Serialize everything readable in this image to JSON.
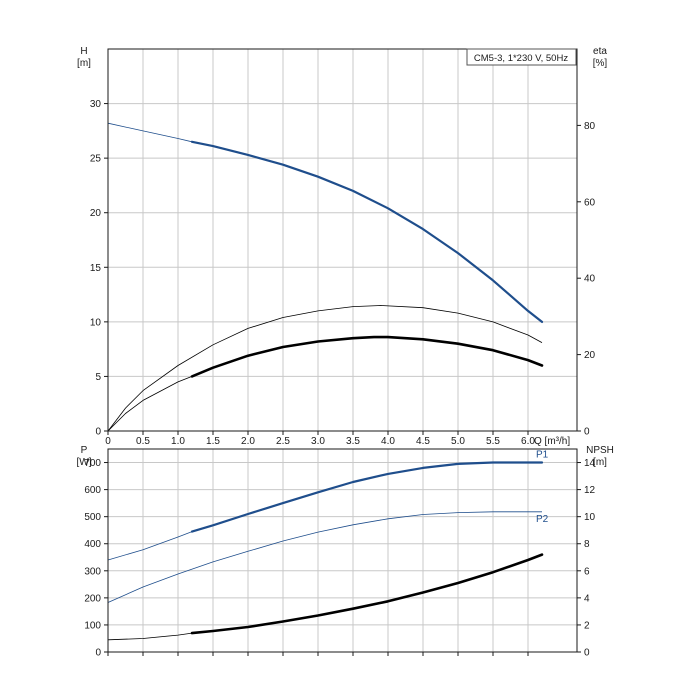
{
  "chart_data": [
    {
      "type": "line",
      "title": "CM5-3, 1*230 V, 50Hz",
      "xlabel": "Q [m³/h]",
      "ylabel_left": [
        "H",
        "[m]"
      ],
      "ylabel_right": [
        "eta",
        "[%]"
      ],
      "xlim": [
        0,
        6.7
      ],
      "ylim_left": [
        0,
        35
      ],
      "ylim_right": [
        0,
        100
      ],
      "xticks": [
        "0",
        "0.5",
        "1.0",
        "1.5",
        "2.0",
        "2.5",
        "3.0",
        "3.5",
        "4.0",
        "4.5",
        "5.0",
        "5.5",
        "6.0"
      ],
      "yticks_left": [
        "0",
        "5",
        "10",
        "15",
        "20",
        "25",
        "30"
      ],
      "yticks_right": [
        "0",
        "20",
        "40",
        "60",
        "80"
      ],
      "grid": true,
      "series": [
        {
          "axis": "left",
          "color": "#1f4e8c",
          "x": [
            0,
            0.5,
            1.0,
            1.2,
            1.5,
            2.0,
            2.5,
            3.0,
            3.5,
            4.0,
            4.5,
            5.0,
            5.5,
            6.0,
            6.2
          ],
          "y": [
            28.2,
            27.5,
            26.8,
            26.5,
            26.1,
            25.3,
            24.4,
            23.3,
            22.0,
            20.4,
            18.5,
            16.3,
            13.8,
            11.0,
            10.0
          ],
          "bold_from": 1.2
        },
        {
          "axis": "left",
          "color": "#000000",
          "x": [
            0,
            0.25,
            0.5,
            1.0,
            1.2,
            1.5,
            2.0,
            2.5,
            3.0,
            3.5,
            3.8,
            4.0,
            4.5,
            5.0,
            5.5,
            6.0,
            6.2
          ],
          "y": [
            0,
            1.6,
            2.8,
            4.5,
            5.0,
            5.8,
            6.9,
            7.7,
            8.2,
            8.5,
            8.6,
            8.6,
            8.4,
            8.0,
            7.4,
            6.5,
            6.0
          ],
          "bold_from": 1.2,
          "bold_width": 2.6
        },
        {
          "axis": "left",
          "color": "#000000",
          "x": [
            0,
            0.25,
            0.5,
            1.0,
            1.5,
            2.0,
            2.5,
            3.0,
            3.5,
            3.9,
            4.5,
            5.0,
            5.5,
            6.0,
            6.2
          ],
          "y": [
            0,
            2.1,
            3.7,
            6.0,
            7.9,
            9.4,
            10.4,
            11.0,
            11.4,
            11.5,
            11.3,
            10.8,
            10.0,
            8.8,
            8.1
          ]
        }
      ]
    },
    {
      "type": "line",
      "ylabel_left": [
        "P",
        "[W]"
      ],
      "ylabel_right": [
        "NPSH",
        "[m]"
      ],
      "xlim": [
        0,
        6.7
      ],
      "ylim_left": [
        0,
        750
      ],
      "ylim_right": [
        0,
        15
      ],
      "yticks_left": [
        "0",
        "100",
        "200",
        "300",
        "400",
        "500",
        "600",
        "700"
      ],
      "yticks_right": [
        "0",
        "2",
        "4",
        "6",
        "8",
        "10",
        "12",
        "14"
      ],
      "grid": true,
      "series": [
        {
          "name": "P1",
          "axis": "left",
          "color": "#1f4e8c",
          "x": [
            0,
            0.5,
            1.0,
            1.2,
            1.5,
            2.0,
            2.5,
            3.0,
            3.5,
            4.0,
            4.5,
            5.0,
            5.5,
            6.0,
            6.2
          ],
          "y": [
            340,
            378,
            425,
            445,
            468,
            510,
            550,
            590,
            628,
            658,
            680,
            695,
            700,
            700,
            700
          ],
          "bold_from": 1.2
        },
        {
          "name": "P2",
          "axis": "left",
          "color": "#1f4e8c",
          "x": [
            0,
            0.5,
            1.0,
            1.5,
            2.0,
            2.5,
            3.0,
            3.5,
            4.0,
            4.5,
            5.0,
            5.5,
            6.0,
            6.2
          ],
          "y": [
            183,
            240,
            288,
            333,
            372,
            410,
            443,
            470,
            492,
            508,
            515,
            518,
            518,
            518
          ]
        },
        {
          "axis": "right",
          "color": "#000000",
          "x": [
            0,
            0.5,
            1.0,
            1.2,
            1.5,
            2.0,
            2.5,
            3.0,
            3.5,
            4.0,
            4.5,
            5.0,
            5.5,
            6.0,
            6.2
          ],
          "y": [
            0.9,
            1.0,
            1.25,
            1.4,
            1.55,
            1.85,
            2.25,
            2.7,
            3.2,
            3.75,
            4.4,
            5.1,
            5.9,
            6.8,
            7.2
          ],
          "bold_from": 1.2,
          "bold_width": 2.6
        }
      ]
    }
  ]
}
